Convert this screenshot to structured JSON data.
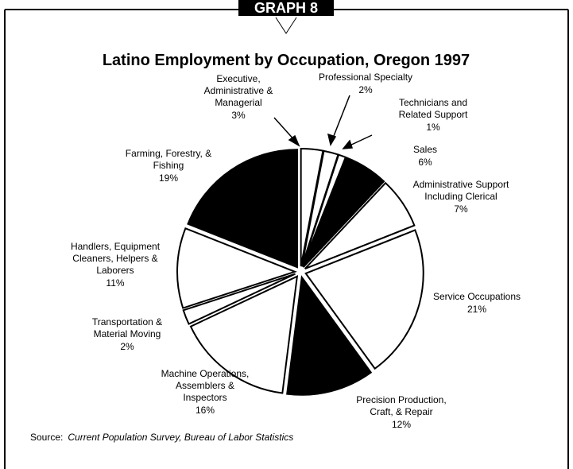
{
  "header": "GRAPH 8",
  "chart_data": {
    "type": "pie",
    "title": "Latino Employment by Occupation, Oregon 1997",
    "categories": [
      [
        "Executive,",
        "Administrative &",
        "Managerial"
      ],
      [
        "Professional Specialty"
      ],
      [
        "Technicians and",
        "Related Support"
      ],
      [
        "Sales"
      ],
      [
        "Administrative Support",
        "Including Clerical"
      ],
      [
        "Service Occupations"
      ],
      [
        "Precision Production,",
        "Craft, & Repair"
      ],
      [
        "Machine Operations,",
        "Assemblers &",
        "Inspectors"
      ],
      [
        "Transportation &",
        "Material Moving"
      ],
      [
        "Handlers, Equipment",
        "Cleaners, Helpers &",
        "Laborers"
      ],
      [
        "Farming, Forestry, &",
        "Fishing"
      ]
    ],
    "values": [
      3,
      2,
      1,
      6,
      7,
      21,
      12,
      16,
      2,
      11,
      19
    ],
    "value_labels": [
      "3%",
      "2%",
      "1%",
      "6%",
      "7%",
      "21%",
      "12%",
      "16%",
      "2%",
      "11%",
      "19%"
    ],
    "colors": [
      "#ffffff",
      "#ffffff",
      "#ffffff",
      "#000000",
      "#ffffff",
      "#ffffff",
      "#000000",
      "#ffffff",
      "#ffffff",
      "#ffffff",
      "#000000"
    ]
  },
  "source_label": "Source:",
  "source": "Current Population Survey, Bureau of Labor Statistics"
}
